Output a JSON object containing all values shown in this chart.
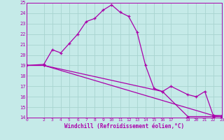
{
  "xlabel": "Windchill (Refroidissement éolien,°C)",
  "background_color": "#c5eae8",
  "grid_color": "#a8d4d0",
  "line_color": "#aa00aa",
  "text_color": "#aa00aa",
  "xlim": [
    0,
    23
  ],
  "ylim": [
    14,
    25
  ],
  "yticks": [
    14,
    15,
    16,
    17,
    18,
    19,
    20,
    21,
    22,
    23,
    24,
    25
  ],
  "xticks": [
    0,
    2,
    3,
    4,
    5,
    6,
    7,
    8,
    9,
    10,
    11,
    12,
    13,
    14,
    15,
    16,
    17,
    19,
    20,
    21,
    22,
    23
  ],
  "series": [
    {
      "x": [
        0,
        2,
        3,
        4,
        5,
        6,
        7,
        8,
        9,
        10,
        11,
        12,
        13,
        14,
        15,
        16,
        19,
        22,
        23
      ],
      "y": [
        19,
        19.1,
        20.5,
        20.2,
        21.1,
        22.0,
        23.2,
        23.5,
        24.3,
        24.8,
        24.1,
        23.7,
        22.2,
        19.0,
        16.8,
        16.5,
        14.1,
        14.1,
        14.1
      ]
    },
    {
      "x": [
        0,
        2,
        22,
        23
      ],
      "y": [
        19.0,
        19.0,
        14.2,
        14.1
      ]
    },
    {
      "x": [
        0,
        2,
        16,
        17,
        19,
        20,
        21,
        22,
        23
      ],
      "y": [
        19.0,
        19.0,
        16.5,
        17.0,
        16.2,
        16.0,
        16.5,
        14.2,
        14.2
      ]
    }
  ]
}
